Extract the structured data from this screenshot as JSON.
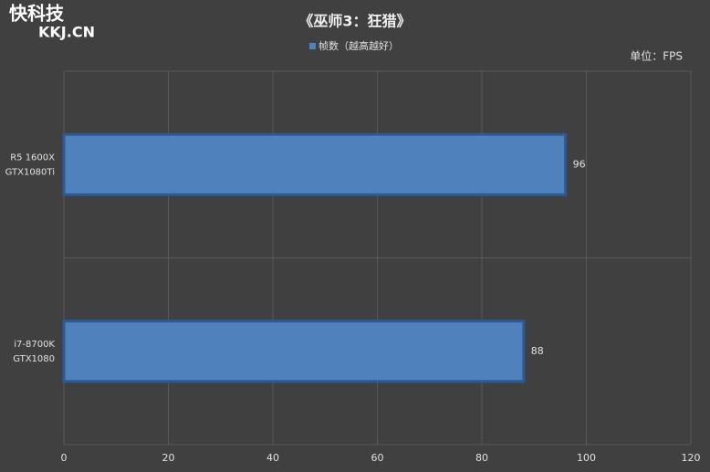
{
  "chart_data": {
    "type": "barh",
    "watermark": {
      "brand": "快科技",
      "site": "KKJ.CN"
    },
    "title": "《巫师3：狂猎》",
    "unit": "单位：FPS",
    "categories": [
      [
        "R5 1600X",
        "GTX1080Ti"
      ],
      [
        "i7-8700K",
        "GTX1080"
      ]
    ],
    "series": [
      {
        "name": "帧数（越高越好）",
        "color": "#4f81bd",
        "values": [
          96,
          88
        ]
      }
    ],
    "xlim": [
      0,
      120
    ],
    "xticks": [
      0,
      20,
      40,
      60,
      80,
      100,
      120
    ],
    "grid": true
  }
}
